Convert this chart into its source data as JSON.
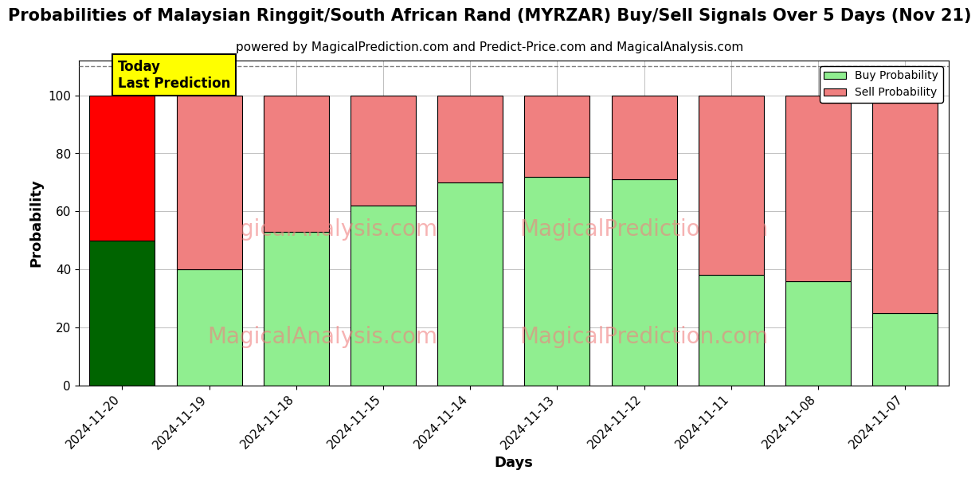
{
  "title": "Probabilities of Malaysian Ringgit/South African Rand (MYRZAR) Buy/Sell Signals Over 5 Days (Nov 21)",
  "subtitle": "powered by MagicalPrediction.com and Predict-Price.com and MagicalAnalysis.com",
  "xlabel": "Days",
  "ylabel": "Probability",
  "categories": [
    "2024-11-20",
    "2024-11-19",
    "2024-11-18",
    "2024-11-15",
    "2024-11-14",
    "2024-11-13",
    "2024-11-12",
    "2024-11-11",
    "2024-11-08",
    "2024-11-07"
  ],
  "buy_values": [
    50,
    40,
    53,
    62,
    70,
    72,
    71,
    38,
    36,
    25
  ],
  "sell_values": [
    50,
    60,
    47,
    38,
    30,
    28,
    29,
    62,
    64,
    75
  ],
  "buy_color_today": "#006400",
  "sell_color_today": "#ff0000",
  "buy_color_other": "#90EE90",
  "sell_color_other": "#F08080",
  "bar_edgecolor": "#000000",
  "ylim": [
    0,
    112
  ],
  "yticks": [
    0,
    20,
    40,
    60,
    80,
    100
  ],
  "dashed_line_y": 110,
  "today_label": "Today\nLast Prediction",
  "today_label_bg": "#ffff00",
  "legend_buy": "Buy Probability",
  "legend_sell": "Sell Probability",
  "watermark1_text": "MagicalAnalysis.com",
  "watermark2_text": "MagicalPrediction.com",
  "watermark_color": "#F08080",
  "title_fontsize": 15,
  "subtitle_fontsize": 11,
  "axis_label_fontsize": 13,
  "tick_fontsize": 11,
  "bar_width": 0.75
}
